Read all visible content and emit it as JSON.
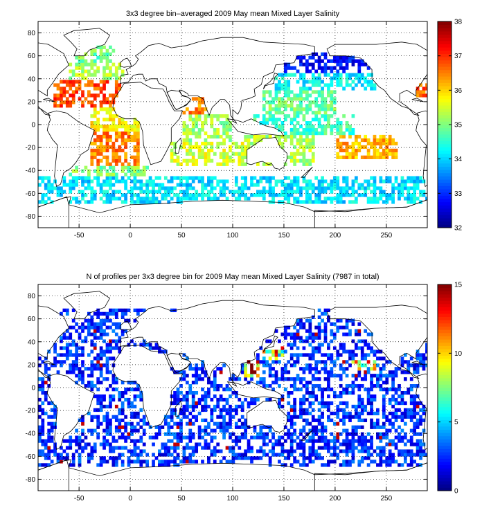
{
  "chart_data": [
    {
      "type": "heatmap",
      "title": "3x3 degree bin–averaged 2009 May mean Mixed Layer Salinity",
      "xlabel": "",
      "ylabel": "",
      "xlim": [
        -90,
        290
      ],
      "ylim": [
        -90,
        90
      ],
      "x_ticks": [
        -50,
        0,
        50,
        100,
        150,
        200,
        250
      ],
      "y_ticks": [
        80,
        60,
        40,
        20,
        0,
        -20,
        -40,
        -60,
        -80
      ],
      "grid": true,
      "bin_size_deg": 3,
      "colormap": "jet",
      "colorbar": {
        "min": 32,
        "max": 38,
        "ticks": [
          32,
          33,
          34,
          35,
          36,
          37,
          38
        ]
      },
      "regions": [
        {
          "lon": [
            -75,
            -10
          ],
          "lat": [
            15,
            40
          ],
          "value": 36.8
        },
        {
          "lon": [
            -60,
            -5
          ],
          "lat": [
            40,
            55
          ],
          "value": 35.3
        },
        {
          "lon": [
            -55,
            -15
          ],
          "lat": [
            55,
            70
          ],
          "value": 34.9
        },
        {
          "lon": [
            -40,
            10
          ],
          "lat": [
            -5,
            15
          ],
          "value": 35.8
        },
        {
          "lon": [
            -40,
            10
          ],
          "lat": [
            -35,
            -5
          ],
          "value": 36.5
        },
        {
          "lon": [
            -60,
            20
          ],
          "lat": [
            -45,
            -35
          ],
          "value": 35.0
        },
        {
          "lon": [
            50,
            75
          ],
          "lat": [
            10,
            25
          ],
          "value": 36.5
        },
        {
          "lon": [
            50,
            100
          ],
          "lat": [
            -15,
            10
          ],
          "value": 35.2
        },
        {
          "lon": [
            40,
            110
          ],
          "lat": [
            -35,
            -15
          ],
          "value": 35.5
        },
        {
          "lon": [
            110,
            180
          ],
          "lat": [
            -35,
            -10
          ],
          "value": 35.3
        },
        {
          "lon": [
            120,
            220
          ],
          "lat": [
            -10,
            10
          ],
          "value": 34.6
        },
        {
          "lon": [
            200,
            260
          ],
          "lat": [
            -30,
            -10
          ],
          "value": 36.2
        },
        {
          "lon": [
            130,
            200
          ],
          "lat": [
            10,
            30
          ],
          "value": 34.9
        },
        {
          "lon": [
            140,
            240
          ],
          "lat": [
            30,
            45
          ],
          "value": 34.2
        },
        {
          "lon": [
            150,
            235
          ],
          "lat": [
            45,
            62
          ],
          "value": 32.8
        },
        {
          "lon": [
            280,
            290
          ],
          "lat": [
            25,
            35
          ],
          "value": 36.7
        },
        {
          "lon": [
            -90,
            290
          ],
          "lat": [
            -70,
            -45
          ],
          "value": 34.1
        }
      ]
    },
    {
      "type": "heatmap",
      "title": "N of profiles per 3x3 degree bin for 2009 May mean Mixed Layer Salinity  (7987 in total)",
      "xlabel": "",
      "ylabel": "",
      "xlim": [
        -90,
        290
      ],
      "ylim": [
        -90,
        90
      ],
      "x_ticks": [
        -50,
        0,
        50,
        100,
        150,
        200,
        250
      ],
      "y_ticks": [
        80,
        60,
        40,
        20,
        0,
        -20,
        -40,
        -60,
        -80
      ],
      "grid": true,
      "bin_size_deg": 3,
      "colormap": "jet",
      "total_profiles": 7987,
      "colorbar": {
        "min": 0,
        "max": 15,
        "ticks": [
          0,
          5,
          10,
          15
        ]
      },
      "regions": [
        {
          "lon": [
            -90,
            290
          ],
          "lat": [
            -70,
            70
          ],
          "value": 2.5
        },
        {
          "lon": [
            130,
            150
          ],
          "lat": [
            25,
            40
          ],
          "value": 9.5
        },
        {
          "lon": [
            110,
            125
          ],
          "lat": [
            10,
            25
          ],
          "value": 12.5
        },
        {
          "lon": [
            60,
            70
          ],
          "lat": [
            20,
            25
          ],
          "value": 14
        },
        {
          "lon": [
            215,
            240
          ],
          "lat": [
            15,
            25
          ],
          "value": 8.5
        }
      ]
    }
  ]
}
